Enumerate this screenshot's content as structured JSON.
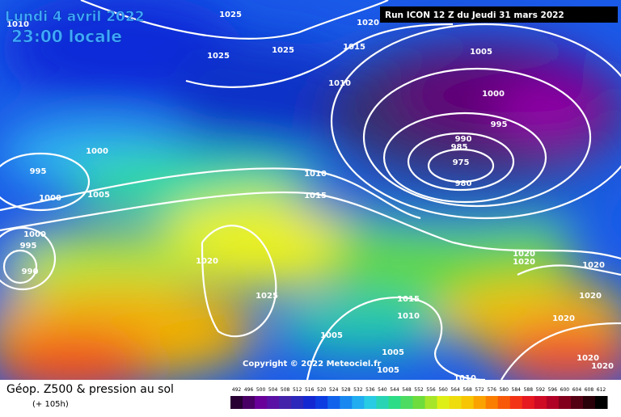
{
  "header": {
    "date": "Lundi 4 avril 2022",
    "time": "23:00 locale",
    "run": "Run ICON 12 Z du Jeudi 31 mars 2022"
  },
  "footer": {
    "title": "Géop. Z500 & pression au sol",
    "lead": "(+ 105h)",
    "copyright": "Copyright © 2022 Meteociel.fr"
  },
  "colorbar": {
    "ticks": [
      492,
      496,
      500,
      504,
      508,
      512,
      516,
      520,
      524,
      528,
      532,
      536,
      540,
      544,
      548,
      552,
      556,
      560,
      564,
      568,
      572,
      576,
      580,
      584,
      588,
      592,
      596,
      600,
      604,
      608,
      612
    ]
  },
  "isobar_labels": [
    "1025",
    "1010",
    "1020",
    "1025",
    "1015",
    "1005",
    "1025",
    "1010",
    "1000",
    "995",
    "1000",
    "990",
    "985",
    "975",
    "980",
    "995",
    "1000",
    "1005",
    "1010",
    "1015",
    "1000",
    "995",
    "990",
    "1020",
    "1020",
    "1020",
    "1020",
    "1025",
    "1015",
    "1010",
    "1020",
    "1020",
    "1005",
    "1005",
    "1005",
    "1020",
    "1020",
    "1010"
  ]
}
